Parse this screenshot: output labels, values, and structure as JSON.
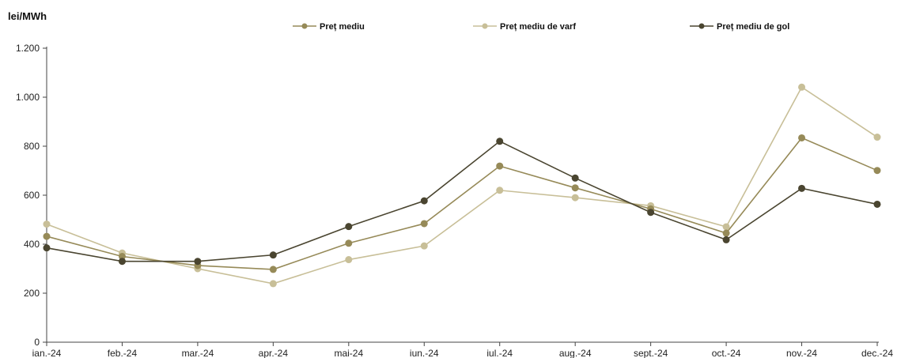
{
  "chart_data": {
    "type": "line",
    "unit_label": "lei/MWh",
    "categories": [
      "ian.-24",
      "feb.-24",
      "mar.-24",
      "apr.-24",
      "mai-24",
      "iun.-24",
      "iul.-24",
      "aug.-24",
      "sept.-24",
      "oct.-24",
      "nov.-24",
      "dec.-24"
    ],
    "yticks": [
      0,
      200,
      400,
      600,
      800,
      1000,
      1200
    ],
    "ytick_labels": [
      "0",
      "200",
      "400",
      "600",
      "800",
      "1.000",
      "1.200"
    ],
    "ylim": [
      0,
      1200
    ],
    "grid": false,
    "legend_position": "top",
    "series": [
      {
        "name": "Preț mediu",
        "color": "#968a58",
        "values": [
          432,
          350,
          313,
          297,
          404,
          484,
          719,
          630,
          544,
          445,
          834,
          701
        ]
      },
      {
        "name": "Preț mediu de varf",
        "color": "#c8bf98",
        "values": [
          482,
          364,
          300,
          239,
          337,
          393,
          620,
          590,
          557,
          471,
          1041,
          837
        ]
      },
      {
        "name": "Preț mediu de gol",
        "color": "#4a4530",
        "values": [
          385,
          330,
          330,
          356,
          472,
          577,
          820,
          670,
          530,
          418,
          628,
          563
        ]
      }
    ]
  }
}
